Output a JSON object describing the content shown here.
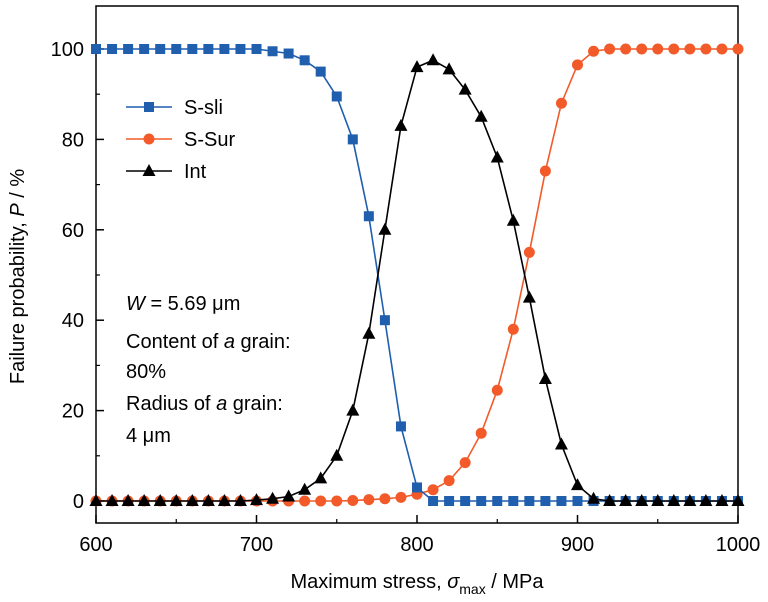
{
  "chart_data": {
    "type": "line",
    "xlabel": {
      "prefix": "Maximum stress, ",
      "sym": "σ",
      "sub": "max",
      "suffix": " / MPa"
    },
    "ylabel": {
      "prefix": "Failure probability, ",
      "sym": "P",
      "suffix": " / %"
    },
    "xlim": [
      600,
      1000
    ],
    "ylim": [
      -5,
      110
    ],
    "xticks": [
      600,
      700,
      800,
      900,
      1000
    ],
    "yticks": [
      0,
      20,
      40,
      60,
      80,
      100
    ],
    "legend_position": "upper-left",
    "grid": false,
    "x": [
      600,
      610,
      620,
      630,
      640,
      650,
      660,
      670,
      680,
      690,
      700,
      710,
      720,
      730,
      740,
      750,
      760,
      770,
      780,
      790,
      800,
      810,
      820,
      830,
      840,
      850,
      860,
      870,
      880,
      890,
      900,
      910,
      920,
      930,
      940,
      950,
      960,
      970,
      980,
      990,
      1000
    ],
    "series": [
      {
        "name": "S-sli",
        "color": "#1f5fae",
        "marker": "square",
        "values": [
          100,
          100,
          100,
          100,
          100,
          100,
          100,
          100,
          100,
          100,
          100,
          99.5,
          99,
          97.5,
          95,
          89.5,
          80,
          63,
          40,
          16.5,
          3,
          0,
          0,
          0,
          0,
          0,
          0,
          0,
          0,
          0,
          0,
          0,
          0,
          0,
          0,
          0,
          0,
          0,
          0,
          0,
          0
        ]
      },
      {
        "name": "S-Sur",
        "color": "#f25a29",
        "marker": "circle",
        "values": [
          0,
          0,
          0,
          0,
          0,
          0,
          0,
          0,
          0,
          0,
          0,
          0,
          0,
          0,
          0,
          0,
          0.1,
          0.3,
          0.5,
          0.8,
          1.5,
          2.5,
          4.5,
          8.5,
          15,
          24.5,
          38,
          55,
          73,
          88,
          96.5,
          99.5,
          100,
          100,
          100,
          100,
          100,
          100,
          100,
          100,
          100
        ]
      },
      {
        "name": "Int",
        "color": "#000000",
        "marker": "triangle",
        "values": [
          0,
          0,
          0,
          0,
          0,
          0,
          0,
          0,
          0,
          0,
          0.2,
          0.5,
          1,
          2.5,
          5,
          10,
          20,
          37,
          60,
          83,
          96,
          97.5,
          95.5,
          91,
          85,
          76,
          62,
          45,
          27,
          12.5,
          3.5,
          0.5,
          0,
          0,
          0,
          0,
          0,
          0,
          0,
          0,
          0
        ]
      }
    ],
    "annotations": [
      {
        "sym": "W",
        "text": " = 5.69 μm"
      },
      {
        "text": "Content of ",
        "sym": "a",
        "suffix": " grain:"
      },
      {
        "text": "80%"
      },
      {
        "text": "Radius of ",
        "sym": "a",
        "suffix": " grain:"
      },
      {
        "text": "4 μm"
      }
    ]
  }
}
